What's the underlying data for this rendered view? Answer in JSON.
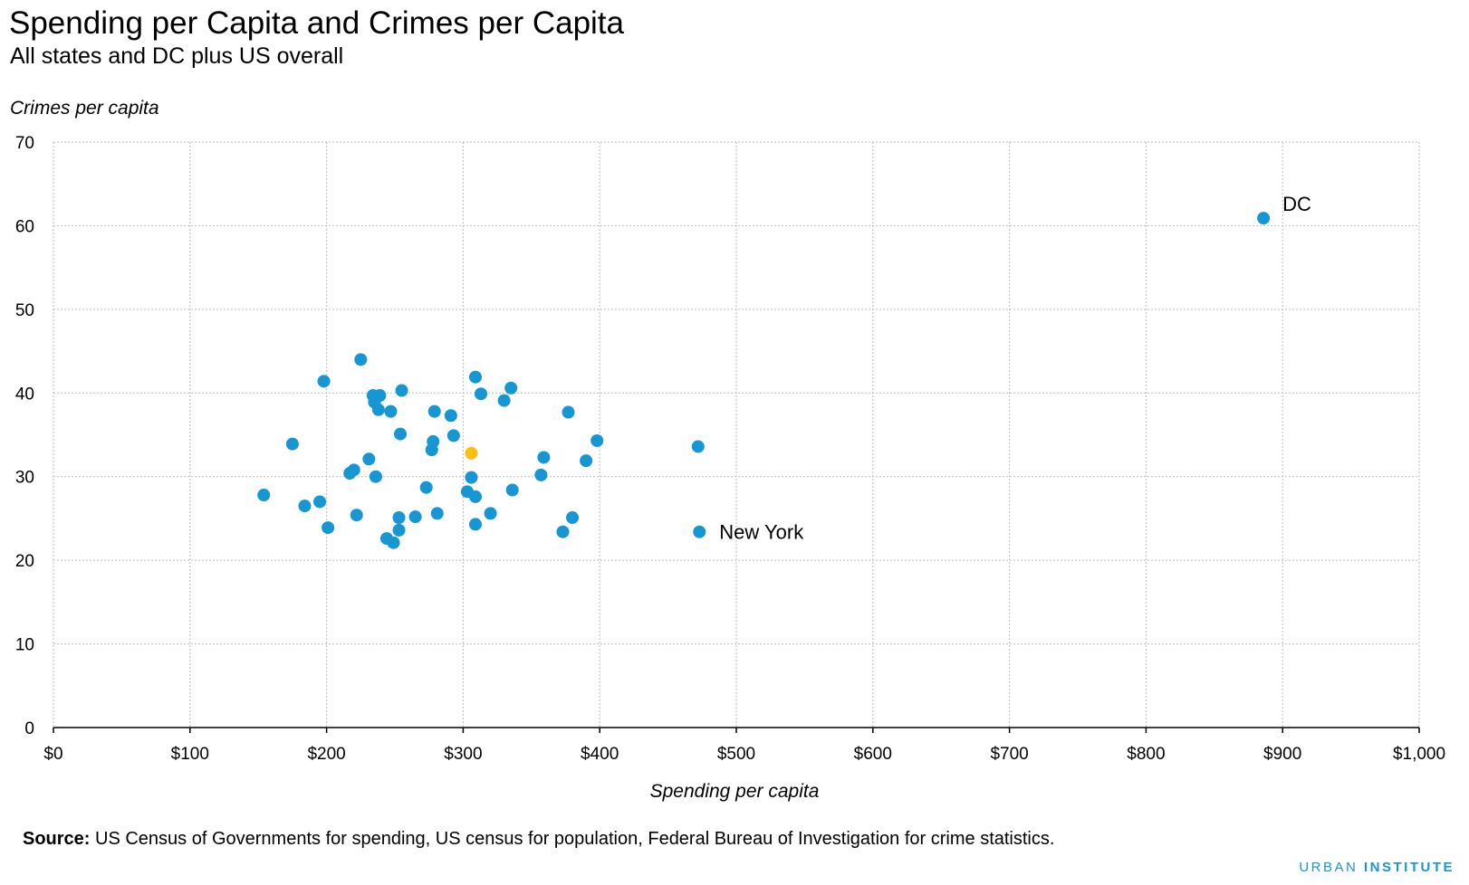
{
  "header": {
    "title": "Spending per Capita and Crimes per Capita",
    "subtitle": "All states and DC plus US overall"
  },
  "footer": {
    "source_label": "Source:",
    "source_text": " US Census of Governments for spending, US census for population, Federal Bureau of Investigation for crime statistics.",
    "brand_a": "URBAN",
    "brand_b": " INSTITUTE"
  },
  "chart_data": {
    "type": "scatter",
    "title": "Spending per Capita and Crimes per Capita",
    "subtitle": "All states and DC plus US overall",
    "xlabel": "Spending per capita",
    "ylabel": "Crimes per capita",
    "xlim": [
      0,
      1000
    ],
    "ylim": [
      0,
      70
    ],
    "x_ticks": [
      0,
      100,
      200,
      300,
      400,
      500,
      600,
      700,
      800,
      900,
      1000
    ],
    "x_tick_labels": [
      "$0",
      "$100",
      "$200",
      "$300",
      "$400",
      "$500",
      "$600",
      "$700",
      "$800",
      "$900",
      "$1,000"
    ],
    "y_ticks": [
      0,
      10,
      20,
      30,
      40,
      50,
      60,
      70
    ],
    "y_tick_labels": [
      "0",
      "10",
      "20",
      "30",
      "40",
      "50",
      "60",
      "70"
    ],
    "grid": true,
    "colors": {
      "states": "#1696d2",
      "us_overall": "#fdbf11"
    },
    "series": [
      {
        "points": [
          [
            154,
            27.8
          ],
          [
            175,
            33.9
          ],
          [
            184,
            26.5
          ],
          [
            195,
            27.0
          ],
          [
            198,
            41.4
          ],
          [
            201,
            23.9
          ],
          [
            217,
            30.4
          ],
          [
            220,
            30.8
          ],
          [
            222,
            25.4
          ],
          [
            225,
            44.0
          ],
          [
            231,
            32.1
          ],
          [
            234,
            39.7
          ],
          [
            235,
            38.9
          ],
          [
            236,
            30.0
          ],
          [
            238,
            38.0
          ],
          [
            239,
            39.7
          ],
          [
            244,
            22.6
          ],
          [
            247,
            37.8
          ],
          [
            249,
            22.1
          ],
          [
            253,
            25.1
          ],
          [
            253,
            23.6
          ],
          [
            254,
            35.1
          ],
          [
            255,
            40.3
          ],
          [
            265,
            25.2
          ],
          [
            273,
            28.7
          ],
          [
            277,
            33.2
          ],
          [
            278,
            34.2
          ],
          [
            279,
            37.8
          ],
          [
            281,
            25.6
          ],
          [
            291,
            37.3
          ],
          [
            293,
            34.9
          ],
          [
            303,
            28.2
          ],
          [
            306,
            29.9
          ],
          [
            309,
            41.9
          ],
          [
            309,
            24.3
          ],
          [
            309,
            27.6
          ],
          [
            313,
            39.9
          ],
          [
            320,
            25.6
          ],
          [
            330,
            39.1
          ],
          [
            335,
            40.6
          ],
          [
            336,
            28.4
          ],
          [
            357,
            30.2
          ],
          [
            359,
            32.3
          ],
          [
            373,
            23.4
          ],
          [
            377,
            37.7
          ],
          [
            380,
            25.1
          ],
          [
            390,
            31.9
          ],
          [
            398,
            34.3
          ],
          [
            472,
            33.6
          ],
          [
            473,
            23.4
          ],
          [
            886,
            60.9
          ]
        ]
      },
      {
        "points": [
          [
            306,
            32.8
          ]
        ]
      }
    ],
    "annotations": [
      {
        "text": "DC",
        "x": 886,
        "y": 60.9
      },
      {
        "text": "New York",
        "x": 473,
        "y": 23.4
      }
    ]
  }
}
